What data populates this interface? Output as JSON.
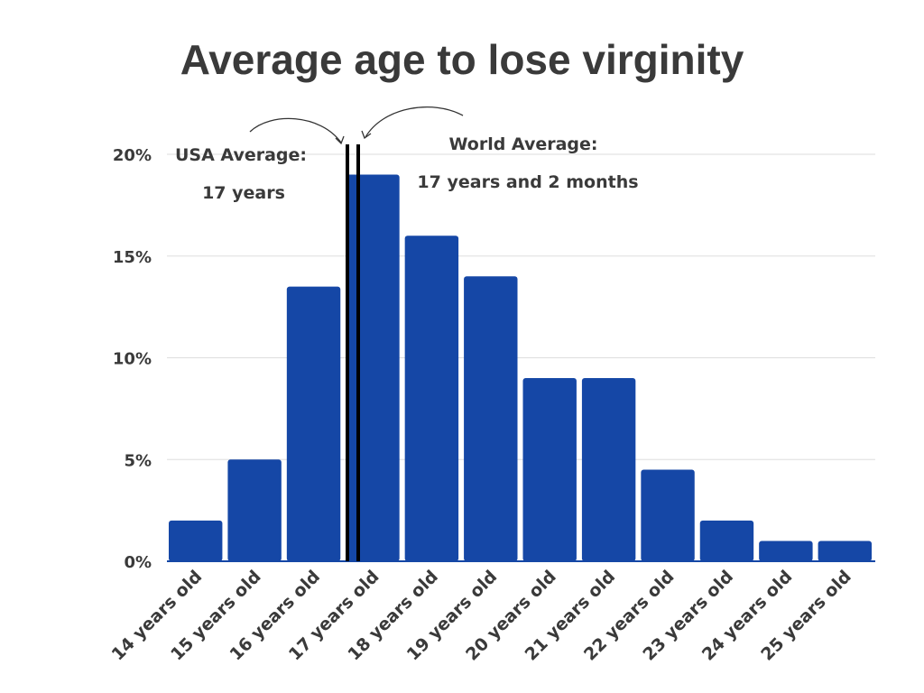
{
  "chart_data": {
    "type": "bar",
    "title": "Average age to lose virginity",
    "xlabel": "",
    "ylabel": "",
    "categories": [
      "14 years old",
      "15 years old",
      "16 years old",
      "17 years old",
      "18 years old",
      "19 years old",
      "20 years old",
      "21 years old",
      "22 years old",
      "23 years old",
      "24 years old",
      "25 years old"
    ],
    "values": [
      2,
      5,
      13.5,
      19,
      16,
      14,
      9,
      9,
      4.5,
      2,
      1,
      1
    ],
    "ylim": [
      0,
      20
    ],
    "yticks": [
      "0%",
      "5%",
      "10%",
      "15%",
      "20%"
    ],
    "grid": true,
    "bar_color": "#1547a6",
    "annotations": {
      "usa": {
        "line1": "USA Average:",
        "line2": "17 years"
      },
      "world": {
        "line1": "World Average:",
        "line2": "17 years and 2 months"
      }
    }
  }
}
